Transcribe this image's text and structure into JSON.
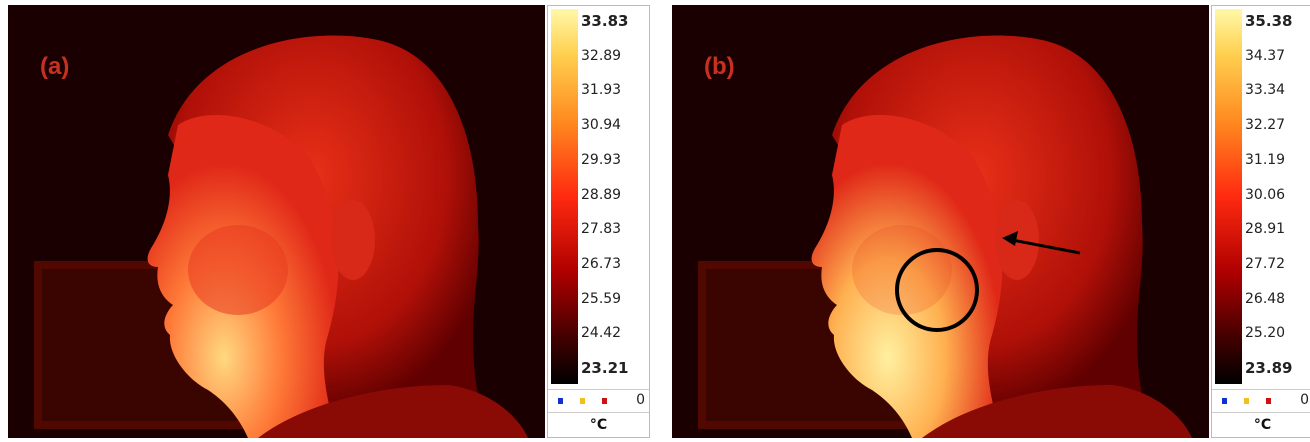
{
  "panels": [
    {
      "label": "(a)",
      "scale": {
        "ticks": [
          "33.83",
          "32.89",
          "31.93",
          "30.94",
          "29.93",
          "28.89",
          "27.83",
          "26.73",
          "25.59",
          "24.42",
          "23.21"
        ],
        "counter": "0",
        "unit": "°C"
      }
    },
    {
      "label": "(b)",
      "scale": {
        "ticks": [
          "35.38",
          "34.37",
          "33.34",
          "32.27",
          "31.19",
          "30.06",
          "28.91",
          "27.72",
          "26.48",
          "25.20",
          "23.89"
        ],
        "counter": "0",
        "unit": "°C"
      }
    }
  ]
}
